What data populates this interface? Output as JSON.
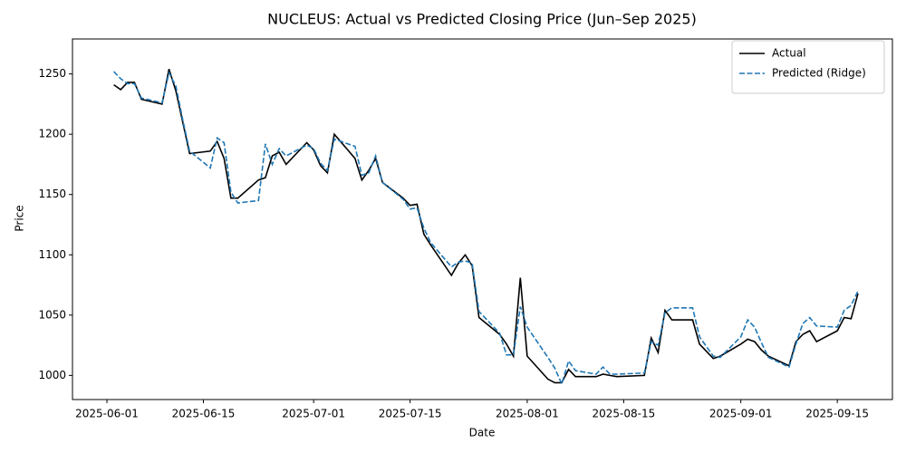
{
  "chart_data": {
    "type": "line",
    "title": "NUCLEUS: Actual vs Predicted Closing Price (Jun–Sep 2025)",
    "xlabel": "Date",
    "ylabel": "Price",
    "x": [
      "2025-06-02",
      "2025-06-03",
      "2025-06-04",
      "2025-06-05",
      "2025-06-06",
      "2025-06-09",
      "2025-06-10",
      "2025-06-11",
      "2025-06-12",
      "2025-06-13",
      "2025-06-16",
      "2025-06-17",
      "2025-06-18",
      "2025-06-19",
      "2025-06-20",
      "2025-06-23",
      "2025-06-24",
      "2025-06-25",
      "2025-06-26",
      "2025-06-27",
      "2025-06-30",
      "2025-07-01",
      "2025-07-02",
      "2025-07-03",
      "2025-07-04",
      "2025-07-07",
      "2025-07-08",
      "2025-07-09",
      "2025-07-10",
      "2025-07-11",
      "2025-07-14",
      "2025-07-15",
      "2025-07-16",
      "2025-07-17",
      "2025-07-18",
      "2025-07-21",
      "2025-07-22",
      "2025-07-23",
      "2025-07-24",
      "2025-07-25",
      "2025-07-28",
      "2025-07-29",
      "2025-07-30",
      "2025-07-31",
      "2025-08-01",
      "2025-08-04",
      "2025-08-05",
      "2025-08-06",
      "2025-08-07",
      "2025-08-08",
      "2025-08-11",
      "2025-08-12",
      "2025-08-13",
      "2025-08-14",
      "2025-08-18",
      "2025-08-19",
      "2025-08-20",
      "2025-08-21",
      "2025-08-22",
      "2025-08-25",
      "2025-08-26",
      "2025-08-28",
      "2025-08-29",
      "2025-09-01",
      "2025-09-02",
      "2025-09-03",
      "2025-09-04",
      "2025-09-05",
      "2025-09-08",
      "2025-09-09",
      "2025-09-10",
      "2025-09-11",
      "2025-09-12",
      "2025-09-15",
      "2025-09-16",
      "2025-09-17",
      "2025-09-18"
    ],
    "series": [
      {
        "name": "Actual",
        "color": "#000000",
        "dash": "solid",
        "values": [
          1241,
          1237,
          1243,
          1243,
          1229,
          1225,
          1254,
          1236,
          1210,
          1184,
          1186,
          1194,
          1180,
          1147,
          1147,
          1162,
          1164,
          1182,
          1185,
          1175,
          1193,
          1187,
          1174,
          1168,
          1200,
          1180,
          1162,
          1170,
          1180,
          1160,
          1147,
          1141,
          1142,
          1117,
          1108,
          1083,
          1093,
          1100,
          1091,
          1048,
          1034,
          1026,
          1016,
          1081,
          1016,
          997,
          994,
          994,
          1005,
          999,
          999,
          1001,
          1000,
          999,
          1000,
          1031,
          1019,
          1054,
          1046,
          1046,
          1026,
          1014,
          1016,
          1026,
          1030,
          1028,
          1021,
          1016,
          1008,
          1028,
          1034,
          1037,
          1028,
          1037,
          1048,
          1047,
          1068
        ]
      },
      {
        "name": "Predicted (Ridge)",
        "color": "#1f77b4",
        "dash": "dashed",
        "values": [
          1252,
          1246,
          1242,
          1242,
          1230,
          1226,
          1251,
          1240,
          1212,
          1186,
          1172,
          1197,
          1193,
          1152,
          1143,
          1145,
          1192,
          1175,
          1188,
          1182,
          1191,
          1188,
          1176,
          1170,
          1196,
          1190,
          1166,
          1168,
          1182,
          1160,
          1146,
          1138,
          1139,
          1122,
          1110,
          1090,
          1094,
          1095,
          1093,
          1053,
          1035,
          1017,
          1017,
          1057,
          1040,
          1015,
          1006,
          993,
          1012,
          1004,
          1001,
          1007,
          1001,
          1001,
          1002,
          1028,
          1025,
          1052,
          1056,
          1056,
          1032,
          1016,
          1015,
          1032,
          1046,
          1040,
          1027,
          1015,
          1007,
          1026,
          1043,
          1048,
          1041,
          1040,
          1054,
          1058,
          1070
        ]
      }
    ],
    "xlim": [
      "2025-05-27",
      "2025-09-23"
    ],
    "xticks": [
      "2025-06-01",
      "2025-06-15",
      "2025-07-01",
      "2025-07-15",
      "2025-08-01",
      "2025-08-15",
      "2025-09-01",
      "2025-09-15"
    ],
    "ylim": [
      980,
      1279
    ],
    "yticks": [
      1000,
      1050,
      1100,
      1150,
      1200,
      1250
    ],
    "legend": "upper right"
  }
}
